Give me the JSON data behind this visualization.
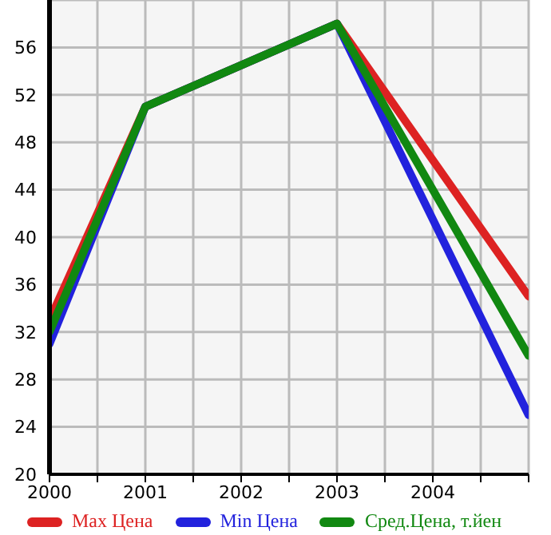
{
  "chart_data": {
    "type": "line",
    "x": [
      2000,
      2001,
      2003,
      2005
    ],
    "series": [
      {
        "name": "Max Цена",
        "color": "#dd2222",
        "values": [
          33,
          51,
          58,
          35
        ]
      },
      {
        "name": "Min Цена",
        "color": "#2222dd",
        "values": [
          31,
          51,
          58,
          25
        ]
      },
      {
        "name": "Сред.Цена, т.йен",
        "color": "#118811",
        "values": [
          32,
          51,
          58,
          30
        ]
      }
    ],
    "xlim": [
      2000,
      2005
    ],
    "xticks": [
      2000,
      {
        "value": 2000.5,
        "label": null
      },
      2001,
      {
        "value": 2001.5,
        "label": null
      },
      2002,
      {
        "value": 2002.5,
        "label": null
      },
      2003,
      {
        "value": 2003.5,
        "label": null
      },
      2004,
      {
        "value": 2004.5,
        "label": null
      },
      {
        "value": 2005,
        "label": null
      }
    ],
    "ylim": [
      20,
      60
    ],
    "yticks": [
      20,
      24,
      28,
      32,
      36,
      40,
      44,
      48,
      52,
      56,
      {
        "value": 60,
        "label": null
      }
    ],
    "grid": true,
    "legend": "bottom",
    "marker": "none",
    "line_style": "solid"
  }
}
